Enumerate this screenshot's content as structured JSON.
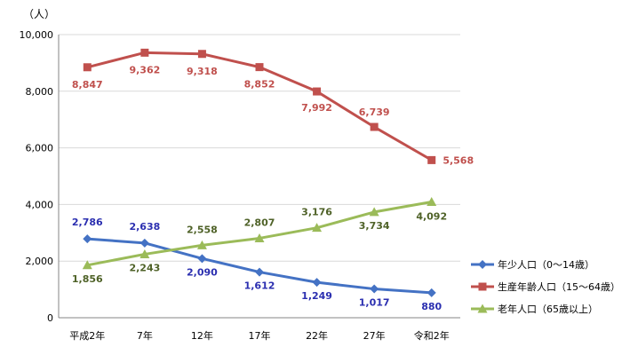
{
  "chart_data": {
    "type": "line",
    "ylabel": "（人）",
    "ylim": [
      0,
      10000
    ],
    "yticks": [
      "0",
      "2,000",
      "4,000",
      "6,000",
      "8,000",
      "10,000"
    ],
    "categories": [
      "平成2年",
      "7年",
      "12年",
      "17年",
      "22年",
      "27年",
      "令和2年"
    ],
    "grid": true,
    "legend": "right",
    "series": [
      {
        "name": "年少人口（0～14歳）",
        "color": "#4472C4",
        "label_color": "#2B2FB0",
        "marker": "diamond",
        "values": [
          2786,
          2638,
          2090,
          1612,
          1249,
          1017,
          880
        ],
        "labels": [
          "2,786",
          "2,638",
          "2,090",
          "1,612",
          "1,249",
          "1,017",
          "880"
        ]
      },
      {
        "name": "生産年齢人口（15～64歳）",
        "color": "#C0504D",
        "label_color": "#C0504D",
        "marker": "square",
        "values": [
          8847,
          9362,
          9318,
          8852,
          7992,
          6739,
          5568
        ],
        "labels": [
          "8,847",
          "9,362",
          "9,318",
          "8,852",
          "7,992",
          "6,739",
          "5,568"
        ]
      },
      {
        "name": "老年人口（65歳以上）",
        "color": "#9BBB59",
        "label_color": "#4F6228",
        "marker": "triangle",
        "values": [
          1856,
          2243,
          2558,
          2807,
          3176,
          3734,
          4092
        ],
        "labels": [
          "1,856",
          "2,243",
          "2,558",
          "2,807",
          "3,176",
          "3,734",
          "4,092"
        ]
      }
    ]
  }
}
